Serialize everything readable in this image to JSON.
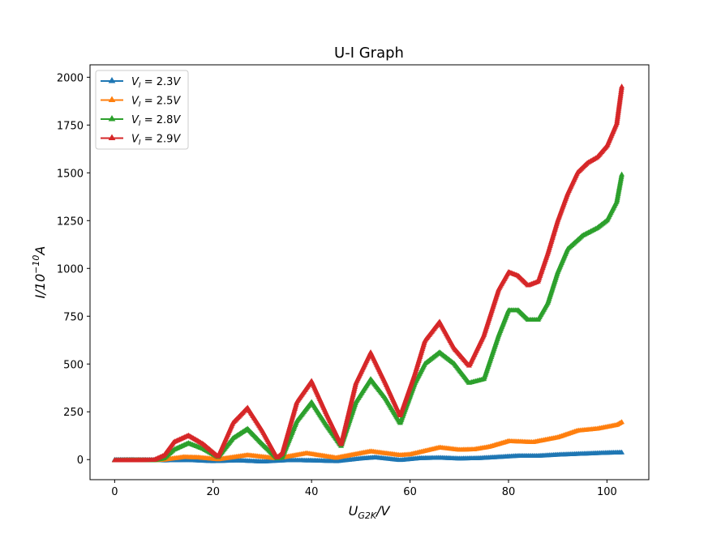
{
  "chart_data": {
    "type": "line",
    "title": "U-I Graph",
    "xlabel": {
      "base": "U",
      "sub": "G2K",
      "suffix": "/V"
    },
    "ylabel": {
      "base": "I",
      "suffix": "/10",
      "sup": "−10",
      "unit": "A"
    },
    "xlim": [
      -5,
      108.5
    ],
    "ylim": [
      -105,
      2065
    ],
    "xticks": [
      0,
      20,
      40,
      60,
      80,
      100
    ],
    "yticks": [
      0,
      250,
      500,
      750,
      1000,
      1250,
      1500,
      1750,
      2000
    ],
    "grid": false,
    "legend": "top-left",
    "marker": "triangle-up",
    "series": [
      {
        "name": "V_I = 2.3V",
        "label": {
          "v": "V",
          "sub": "I",
          "eq": " = 2.3",
          "unit": "V"
        },
        "color": "#1f77b4",
        "x": [
          0,
          8,
          10,
          15,
          20,
          25,
          30,
          35,
          40,
          45,
          50,
          53,
          58,
          62,
          66,
          70,
          74,
          78,
          82,
          86,
          90,
          94,
          98,
          100,
          103
        ],
        "y": [
          -2,
          -3,
          -6,
          -4,
          -10,
          -6,
          -12,
          -5,
          -6,
          -10,
          4,
          10,
          -4,
          6,
          8,
          4,
          6,
          12,
          18,
          18,
          24,
          28,
          32,
          34,
          36
        ]
      },
      {
        "name": "V_I = 2.5V",
        "label": {
          "v": "V",
          "sub": "I",
          "eq": " = 2.5",
          "unit": "V"
        },
        "color": "#ff7f0e",
        "x": [
          0,
          8,
          10,
          14,
          17,
          21,
          27,
          33,
          39,
          45,
          52,
          58,
          60,
          66,
          70,
          73,
          76,
          80,
          85,
          90,
          94,
          98,
          102,
          103
        ],
        "y": [
          -5,
          -5,
          -2,
          12,
          10,
          0,
          22,
          5,
          32,
          8,
          42,
          22,
          26,
          62,
          50,
          52,
          65,
          95,
          90,
          115,
          150,
          160,
          180,
          195
        ]
      },
      {
        "name": "V_I = 2.8V",
        "label": {
          "v": "V",
          "sub": "I",
          "eq": " = 2.8",
          "unit": "V"
        },
        "color": "#2ca02c",
        "x": [
          0,
          4,
          8,
          10,
          12,
          15,
          18,
          21,
          24,
          27,
          30,
          33,
          34,
          37,
          40,
          43,
          46,
          49,
          52,
          55,
          58,
          61,
          63,
          66,
          69,
          72,
          75,
          78,
          80,
          82,
          84,
          86,
          88,
          90,
          92,
          95,
          98,
          100,
          102,
          103
        ],
        "y": [
          -5,
          -5,
          -5,
          5,
          50,
          85,
          55,
          12,
          110,
          160,
          80,
          5,
          10,
          200,
          300,
          180,
          70,
          300,
          420,
          320,
          190,
          400,
          500,
          560,
          500,
          400,
          420,
          650,
          780,
          780,
          730,
          730,
          820,
          980,
          1100,
          1170,
          1210,
          1250,
          1350,
          1490
        ]
      },
      {
        "name": "V_I = 2.9V",
        "label": {
          "v": "V",
          "sub": "I",
          "eq": " = 2.9",
          "unit": "V"
        },
        "color": "#d62728",
        "x": [
          0,
          4,
          8,
          10,
          12,
          15,
          18,
          21,
          24,
          27,
          30,
          33,
          34,
          37,
          40,
          43,
          46,
          49,
          52,
          55,
          58,
          61,
          63,
          66,
          69,
          72,
          75,
          78,
          80,
          82,
          84,
          86,
          88,
          90,
          92,
          94,
          96,
          98,
          100,
          102,
          103
        ],
        "y": [
          -5,
          -5,
          -3,
          20,
          90,
          125,
          80,
          15,
          190,
          270,
          150,
          10,
          30,
          300,
          410,
          240,
          80,
          400,
          560,
          400,
          230,
          450,
          620,
          720,
          580,
          490,
          650,
          890,
          980,
          960,
          910,
          930,
          1080,
          1250,
          1390,
          1500,
          1550,
          1580,
          1640,
          1760,
          1950
        ]
      }
    ]
  }
}
